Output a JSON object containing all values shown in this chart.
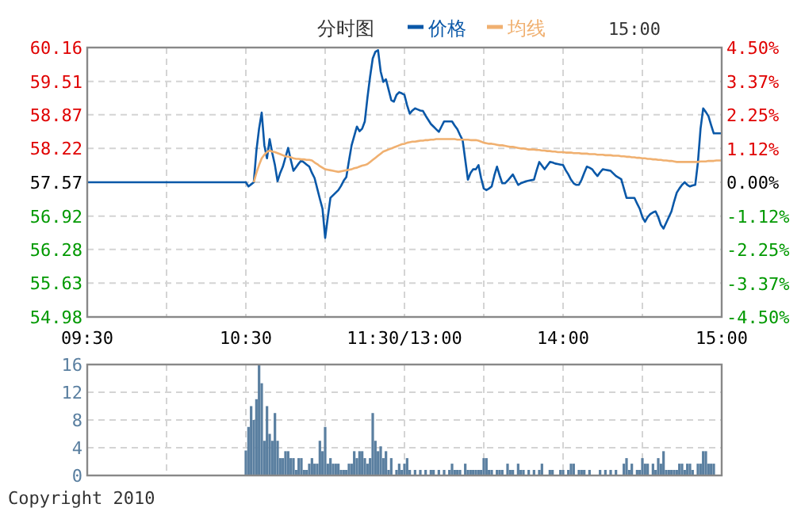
{
  "chart_data": [
    {
      "type": "line",
      "title": "分时图",
      "annotations": [
        "15:00"
      ],
      "legend": "top",
      "grid": true,
      "categories": [
        "09:30",
        null,
        null,
        null,
        null,
        null,
        null,
        null,
        null,
        null,
        null,
        null,
        null,
        null,
        null,
        null,
        null,
        null,
        null,
        null,
        null,
        null,
        null,
        null,
        null,
        null,
        null,
        null,
        null,
        null,
        null,
        null,
        null,
        null,
        null,
        null,
        null,
        null,
        null,
        null,
        null,
        null,
        null,
        null,
        null,
        null,
        null,
        null,
        null,
        null,
        null,
        null,
        null,
        null,
        null,
        null,
        null,
        null,
        null,
        null,
        "10:30",
        null,
        null,
        null,
        null,
        null,
        null,
        null,
        null,
        null,
        null,
        null,
        null,
        null,
        null,
        null,
        null,
        null,
        null,
        null,
        null,
        null,
        null,
        null,
        null,
        null,
        null,
        null,
        null,
        null,
        null,
        null,
        null,
        null,
        null,
        null,
        null,
        null,
        null,
        null,
        null,
        null,
        null,
        null,
        null,
        null,
        null,
        null,
        null,
        null,
        null,
        null,
        null,
        null,
        null,
        null,
        null,
        null,
        null,
        null,
        "11:30/13:00",
        null,
        null,
        null,
        null,
        null,
        null,
        null,
        null,
        null,
        null,
        null,
        null,
        null,
        null,
        null,
        null,
        null,
        null,
        null,
        null,
        null,
        null,
        null,
        null,
        null,
        null,
        null,
        null,
        null,
        null,
        null,
        null,
        null,
        null,
        null,
        null,
        null,
        null,
        null,
        null,
        null,
        null,
        null,
        null,
        null,
        null,
        null,
        null,
        null,
        null,
        null,
        null,
        null,
        null,
        null,
        null,
        null,
        null,
        null,
        "14:00",
        null,
        null,
        null,
        null,
        null,
        null,
        null,
        null,
        null,
        null,
        null,
        null,
        null,
        null,
        null,
        null,
        null,
        null,
        null,
        null,
        null,
        null,
        null,
        null,
        null,
        null,
        null,
        null,
        null,
        null,
        null,
        null,
        null,
        null,
        null,
        null,
        null,
        null,
        null,
        null,
        null,
        null,
        null,
        null,
        null,
        null,
        null,
        null,
        null,
        null,
        null,
        null,
        null,
        null,
        null,
        null,
        null,
        null,
        null,
        "15:00"
      ],
      "ylim": [
        54.98,
        60.16
      ],
      "yticks": [
        54.98,
        55.63,
        56.28,
        56.92,
        57.57,
        58.22,
        58.87,
        59.51,
        60.16
      ],
      "y2lim": [
        -4.5,
        4.5
      ],
      "y2ticks": [
        {
          "value": -4.5,
          "label": "-4.50%"
        },
        {
          "value": -3.375,
          "label": "-3.37%"
        },
        {
          "value": -2.25,
          "label": "-2.25%"
        },
        {
          "value": -1.125,
          "label": "-1.12%"
        },
        {
          "value": 0,
          "label": "0.00%"
        },
        {
          "value": 1.125,
          "label": "1.12%"
        },
        {
          "value": 2.25,
          "label": "2.25%"
        },
        {
          "value": 3.375,
          "label": "3.37%"
        },
        {
          "value": 4.5,
          "label": "4.50%"
        }
      ],
      "series": [
        {
          "name": "价格",
          "color": "#0a58a8",
          "values": [
            57.57,
            57.57,
            57.57,
            57.57,
            57.57,
            57.57,
            57.57,
            57.57,
            57.57,
            57.57,
            57.57,
            57.57,
            57.57,
            57.57,
            57.57,
            57.57,
            57.57,
            57.57,
            57.57,
            57.57,
            57.57,
            57.57,
            57.57,
            57.57,
            57.57,
            57.57,
            57.57,
            57.57,
            57.57,
            57.57,
            57.57,
            57.57,
            57.57,
            57.57,
            57.57,
            57.57,
            57.57,
            57.57,
            57.57,
            57.57,
            57.57,
            57.57,
            57.57,
            57.57,
            57.57,
            57.57,
            57.57,
            57.57,
            57.57,
            57.57,
            57.57,
            57.57,
            57.57,
            57.57,
            57.57,
            57.57,
            57.57,
            57.57,
            57.57,
            57.57,
            57.57,
            57.49,
            57.53,
            57.57,
            58.18,
            58.6,
            58.91,
            58.28,
            58.03,
            58.4,
            58.13,
            57.9,
            57.59,
            57.75,
            57.87,
            58.05,
            58.23,
            58.0,
            57.79,
            57.86,
            57.93,
            57.99,
            57.95,
            57.91,
            57.87,
            57.75,
            57.65,
            57.45,
            57.25,
            57.06,
            56.5,
            56.9,
            57.27,
            57.32,
            57.37,
            57.42,
            57.5,
            57.6,
            57.67,
            57.98,
            58.28,
            58.46,
            58.64,
            58.55,
            58.6,
            58.74,
            59.2,
            59.6,
            59.95,
            60.08,
            60.11,
            59.7,
            59.5,
            59.55,
            59.35,
            59.15,
            59.12,
            59.25,
            59.3,
            59.28,
            59.25,
            59.05,
            58.89,
            58.95,
            58.99,
            58.97,
            58.95,
            58.94,
            58.85,
            58.77,
            58.69,
            58.64,
            58.59,
            58.54,
            58.64,
            58.74,
            58.74,
            58.74,
            58.74,
            58.66,
            58.59,
            58.48,
            58.38,
            58.0,
            57.62,
            57.75,
            57.82,
            57.82,
            57.9,
            57.65,
            57.45,
            57.42,
            57.45,
            57.49,
            57.7,
            57.87,
            57.7,
            57.55,
            57.55,
            57.6,
            57.66,
            57.72,
            57.62,
            57.52,
            57.55,
            57.57,
            57.59,
            57.6,
            57.61,
            57.62,
            57.8,
            57.96,
            57.89,
            57.82,
            57.89,
            57.96,
            57.95,
            57.93,
            57.92,
            57.91,
            57.9,
            57.8,
            57.72,
            57.62,
            57.55,
            57.52,
            57.52,
            57.62,
            57.75,
            57.87,
            57.85,
            57.82,
            57.75,
            57.69,
            57.76,
            57.82,
            57.81,
            57.8,
            57.79,
            57.74,
            57.69,
            57.66,
            57.63,
            57.45,
            57.27,
            57.27,
            57.27,
            57.27,
            57.16,
            57.06,
            56.9,
            56.81,
            56.9,
            56.96,
            56.99,
            57.01,
            56.9,
            56.75,
            56.68,
            56.79,
            56.9,
            57.01,
            57.2,
            57.37,
            57.45,
            57.52,
            57.57,
            57.52,
            57.49,
            57.51,
            57.52,
            57.95,
            58.6,
            58.99,
            58.92,
            58.84,
            58.67,
            58.51,
            58.51,
            58.51,
            58.51
          ]
        },
        {
          "name": "均线",
          "color": "#f0b070",
          "values": [
            null,
            null,
            null,
            null,
            null,
            null,
            null,
            null,
            null,
            null,
            null,
            null,
            null,
            null,
            null,
            null,
            null,
            null,
            null,
            null,
            null,
            null,
            null,
            null,
            null,
            null,
            null,
            null,
            null,
            null,
            null,
            null,
            null,
            null,
            null,
            null,
            null,
            null,
            null,
            null,
            null,
            null,
            null,
            null,
            null,
            null,
            null,
            null,
            null,
            null,
            null,
            null,
            null,
            null,
            null,
            null,
            null,
            null,
            null,
            null,
            null,
            null,
            null,
            57.57,
            57.75,
            57.9,
            58.03,
            58.1,
            58.15,
            58.18,
            58.16,
            58.15,
            58.13,
            58.11,
            58.09,
            58.07,
            58.06,
            58.05,
            58.03,
            58.02,
            58.02,
            58.01,
            58.01,
            58.0,
            58.0,
            57.99,
            57.95,
            57.92,
            57.88,
            57.85,
            57.82,
            57.81,
            57.8,
            57.79,
            57.78,
            57.77,
            57.78,
            57.79,
            57.8,
            57.81,
            57.82,
            57.84,
            57.85,
            57.87,
            57.89,
            57.9,
            57.92,
            57.96,
            58.0,
            58.04,
            58.08,
            58.12,
            58.16,
            58.18,
            58.2,
            58.22,
            58.24,
            58.26,
            58.28,
            58.3,
            58.31,
            58.33,
            58.34,
            58.35,
            58.35,
            58.36,
            58.37,
            58.37,
            58.38,
            58.38,
            58.39,
            58.39,
            58.4,
            58.4,
            58.4,
            58.4,
            58.4,
            58.4,
            58.4,
            58.4,
            58.39,
            58.39,
            58.39,
            58.39,
            58.39,
            58.38,
            58.38,
            58.38,
            58.37,
            58.35,
            58.33,
            58.32,
            58.31,
            58.31,
            58.3,
            58.29,
            58.28,
            58.28,
            58.27,
            58.26,
            58.25,
            58.25,
            58.24,
            58.23,
            58.22,
            58.22,
            58.21,
            58.2,
            58.2,
            58.2,
            58.19,
            58.19,
            58.18,
            58.18,
            58.17,
            58.17,
            58.16,
            58.16,
            58.15,
            58.15,
            58.15,
            58.14,
            58.14,
            58.14,
            58.13,
            58.13,
            58.13,
            58.12,
            58.12,
            58.12,
            58.11,
            58.11,
            58.11,
            58.1,
            58.1,
            58.1,
            58.09,
            58.09,
            58.09,
            58.08,
            58.08,
            58.08,
            58.07,
            58.07,
            58.06,
            58.06,
            58.05,
            58.05,
            58.04,
            58.04,
            58.03,
            58.03,
            58.02,
            58.02,
            58.01,
            58.01,
            58.0,
            58.0,
            57.99,
            57.99,
            57.98,
            57.98,
            57.97,
            57.96,
            57.96,
            57.96,
            57.96,
            57.96,
            57.96,
            57.96,
            57.96,
            57.96,
            57.97,
            57.97,
            57.97,
            57.98,
            57.98,
            57.98,
            57.99,
            57.99,
            57.99
          ]
        }
      ]
    },
    {
      "type": "bar",
      "grid": true,
      "annotations": [
        "Copyright 2010"
      ],
      "categories": [
        null,
        null,
        null,
        null,
        null,
        null,
        null,
        null,
        null,
        null,
        null,
        null,
        null,
        null,
        null,
        null,
        null,
        null,
        null,
        null,
        null,
        null,
        null,
        null,
        null,
        null,
        null,
        null,
        null,
        null,
        null,
        null,
        null,
        null,
        null,
        null,
        null,
        null,
        null,
        null,
        null,
        null,
        null,
        null,
        null,
        null,
        null,
        null,
        null,
        null,
        null,
        null,
        null,
        null,
        null,
        null,
        null,
        null,
        null,
        null,
        null,
        null,
        null,
        null,
        null,
        null,
        null,
        null,
        null,
        null,
        null,
        null,
        null,
        null,
        null,
        null,
        null,
        null,
        null,
        null,
        null,
        null,
        null,
        null,
        null,
        null,
        null,
        null,
        null,
        null,
        null,
        null,
        null,
        null,
        null,
        null,
        null,
        null,
        null,
        null,
        null,
        null,
        null,
        null,
        null,
        null,
        null,
        null,
        null,
        null,
        null,
        null,
        null,
        null,
        null,
        null,
        null,
        null,
        null,
        null,
        null,
        null,
        null,
        null,
        null,
        null,
        null,
        null,
        null,
        null,
        null,
        null,
        null,
        null,
        null,
        null,
        null,
        null,
        null,
        null,
        null,
        null,
        null,
        null,
        null,
        null,
        null,
        null,
        null,
        null,
        null,
        null,
        null,
        null,
        null,
        null,
        null,
        null,
        null,
        null,
        null,
        null,
        null,
        null,
        null,
        null,
        null,
        null,
        null,
        null,
        null,
        null,
        null,
        null,
        null,
        null,
        null,
        null,
        null,
        null,
        null,
        null,
        null,
        null,
        null,
        null,
        null,
        null,
        null,
        null,
        null,
        null,
        null,
        null,
        null,
        null,
        null,
        null,
        null,
        null,
        null,
        null,
        null,
        null,
        null,
        null,
        null,
        null,
        null,
        null,
        null,
        null,
        null,
        null,
        null,
        null,
        null,
        null,
        null,
        null,
        null,
        null,
        null,
        null,
        null,
        null,
        null,
        null,
        null,
        null,
        null,
        null,
        null,
        null,
        null,
        null,
        null,
        null,
        null,
        null,
        null
      ],
      "ylim": [
        0,
        16
      ],
      "yticks": [
        0,
        4,
        8,
        12,
        16
      ],
      "series": [
        {
          "color": "#5a7fa0",
          "values": [
            null,
            null,
            null,
            null,
            null,
            null,
            null,
            null,
            null,
            null,
            null,
            null,
            null,
            null,
            null,
            null,
            null,
            null,
            null,
            null,
            null,
            null,
            null,
            null,
            null,
            null,
            null,
            null,
            null,
            null,
            null,
            null,
            null,
            null,
            null,
            null,
            null,
            null,
            null,
            null,
            null,
            null,
            null,
            null,
            null,
            null,
            null,
            null,
            null,
            null,
            null,
            null,
            null,
            null,
            null,
            null,
            null,
            null,
            null,
            null,
            3.6,
            7,
            10,
            8,
            11,
            16,
            13.3,
            5,
            10,
            6,
            5,
            9,
            5,
            2.5,
            2.5,
            3.5,
            3.5,
            2.5,
            2.5,
            0.8,
            2.5,
            2.5,
            0.8,
            0.8,
            1.7,
            2.5,
            1.7,
            1.7,
            5,
            3.5,
            7,
            1.7,
            2.5,
            1.7,
            1.7,
            1.7,
            0.8,
            0.8,
            0.8,
            1.7,
            1.7,
            3.5,
            2.5,
            3.5,
            3.5,
            2.5,
            1.7,
            2.5,
            9,
            5,
            3.5,
            4.2,
            2.5,
            3.5,
            0.8,
            2.5,
            null,
            0.8,
            1.7,
            0.8,
            1.7,
            2.5,
            0.8,
            null,
            0.8,
            null,
            0.8,
            null,
            0.8,
            null,
            0.8,
            0.8,
            null,
            0.8,
            null,
            0.8,
            null,
            0.8,
            1.7,
            0.8,
            0.8,
            0.8,
            null,
            1.7,
            0.8,
            0.8,
            0.8,
            0.8,
            0.8,
            0.8,
            2.5,
            2.5,
            0.8,
            0.8,
            null,
            0.8,
            0.8,
            0.8,
            null,
            1.7,
            0.8,
            0.8,
            null,
            1.7,
            0.8,
            0.8,
            null,
            0.8,
            null,
            0.8,
            null,
            0.8,
            1.7,
            null,
            null,
            0.8,
            0.8,
            null,
            null,
            0.8,
            0.8,
            null,
            0.8,
            1.7,
            1.7,
            null,
            0.8,
            0.8,
            0.8,
            null,
            0.8,
            null,
            null,
            null,
            0.8,
            null,
            0.8,
            null,
            0.8,
            null,
            0.8,
            null,
            null,
            1.7,
            2.5,
            0.8,
            1.7,
            null,
            0.8,
            0.8,
            2.5,
            1.7,
            1.7,
            null,
            1.7,
            0.8,
            2.5,
            1.7,
            3.5,
            0.8,
            0.8,
            0.8,
            0.8,
            0.8,
            1.7,
            1.7,
            0.8,
            1.7,
            1.7,
            0.8,
            null,
            1.7,
            1.7,
            3.5,
            3.5,
            1.7,
            1.7,
            1.7,
            null,
            null,
            null
          ]
        }
      ]
    }
  ]
}
